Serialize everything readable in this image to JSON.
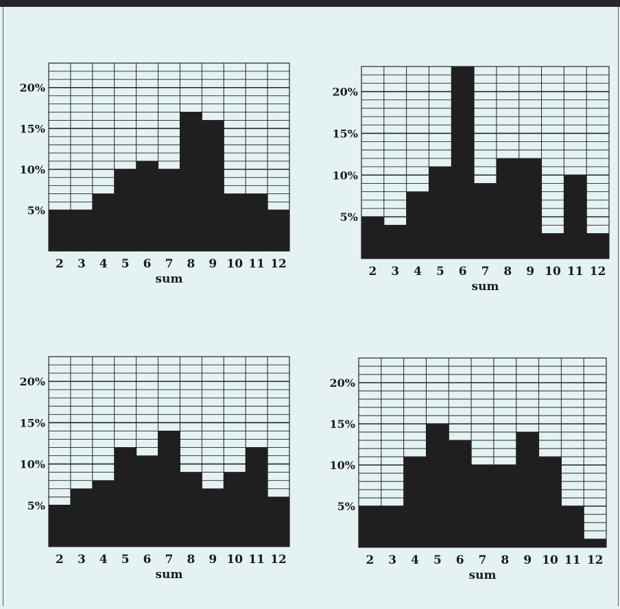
{
  "chart_data": [
    {
      "type": "bar",
      "categories": [
        "2",
        "3",
        "4",
        "5",
        "6",
        "7",
        "8",
        "9",
        "10",
        "11",
        "12"
      ],
      "values": [
        5,
        5,
        7,
        10,
        11,
        10,
        17,
        16,
        7,
        7,
        5
      ],
      "xlabel": "sum",
      "ylabel": "",
      "ylim": [
        0,
        23
      ],
      "yticks": [
        "5%",
        "10%",
        "15%",
        "20%"
      ],
      "grid": true
    },
    {
      "type": "bar",
      "categories": [
        "2",
        "3",
        "4",
        "5",
        "6",
        "7",
        "8",
        "9",
        "10",
        "11",
        "12"
      ],
      "values": [
        5,
        4,
        8,
        11,
        23,
        9,
        12,
        12,
        3,
        10,
        3
      ],
      "xlabel": "sum",
      "ylabel": "",
      "ylim": [
        0,
        23
      ],
      "yticks": [
        "5%",
        "10%",
        "15%",
        "20%"
      ],
      "grid": true
    },
    {
      "type": "bar",
      "categories": [
        "2",
        "3",
        "4",
        "5",
        "6",
        "7",
        "8",
        "9",
        "10",
        "11",
        "12"
      ],
      "values": [
        5,
        7,
        8,
        12,
        11,
        14,
        9,
        7,
        9,
        12,
        6
      ],
      "xlabel": "sum",
      "ylabel": "",
      "ylim": [
        0,
        23
      ],
      "yticks": [
        "5%",
        "10%",
        "15%",
        "20%"
      ],
      "grid": true
    },
    {
      "type": "bar",
      "categories": [
        "2",
        "3",
        "4",
        "5",
        "6",
        "7",
        "8",
        "9",
        "10",
        "11",
        "12"
      ],
      "values": [
        5,
        5,
        11,
        15,
        13,
        10,
        10,
        14,
        11,
        5,
        1
      ],
      "xlabel": "sum",
      "ylabel": "",
      "ylim": [
        0,
        23
      ],
      "yticks": [
        "5%",
        "10%",
        "15%",
        "20%"
      ],
      "grid": true
    }
  ],
  "colors": {
    "bar": "#1f1f1f",
    "grid": "#222222",
    "background": "#e4f2f3"
  }
}
